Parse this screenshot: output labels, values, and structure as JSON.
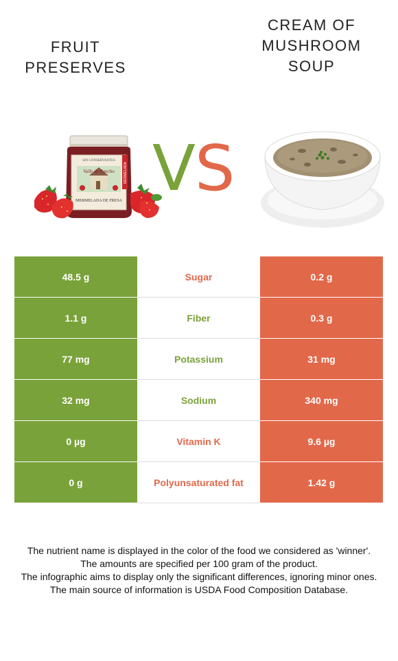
{
  "titles": {
    "left": "FRUIT\nPRESERVES",
    "right": "CREAM OF\nMUSHROOM\nSOUP"
  },
  "vs": {
    "v": "V",
    "s": "S"
  },
  "colors": {
    "left": "#7aa23a",
    "right": "#e2684a"
  },
  "jar_label": {
    "top": "SIN CONSERVANTES",
    "brand": "Valle de Pancho",
    "side": "MERMELADA",
    "bottom": "MERMELADA DE FRESA"
  },
  "rows": [
    {
      "left": "48.5 g",
      "nutrient": "Sugar",
      "right": "0.2 g",
      "winner": "right"
    },
    {
      "left": "1.1 g",
      "nutrient": "Fiber",
      "right": "0.3 g",
      "winner": "left"
    },
    {
      "left": "77 mg",
      "nutrient": "Potassium",
      "right": "31 mg",
      "winner": "left"
    },
    {
      "left": "32 mg",
      "nutrient": "Sodium",
      "right": "340 mg",
      "winner": "left"
    },
    {
      "left": "0 µg",
      "nutrient": "Vitamin K",
      "right": "9.6 µg",
      "winner": "right"
    },
    {
      "left": "0 g",
      "nutrient": "Polyunsaturated fat",
      "right": "1.42 g",
      "winner": "right"
    }
  ],
  "footer": [
    "The nutrient name is displayed in the color of the food we considered as 'winner'.",
    "The amounts are specified per 100 gram of the product.",
    "The infographic aims to display only the significant differences, ignoring minor ones.",
    "The main source of information is USDA Food Composition Database."
  ]
}
